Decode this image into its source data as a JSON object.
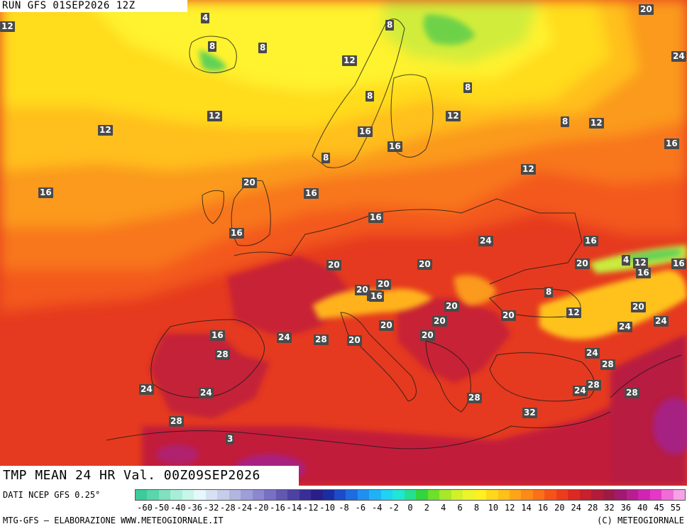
{
  "header": {
    "run_title": "RUN GFS 01SEP2026 12Z"
  },
  "map": {
    "variable_title": "TMP MEAN 24 HR Val. 00Z09SEP2026",
    "labels": [
      "20",
      "4",
      "12",
      "8",
      "8",
      "8",
      "12",
      "24",
      "8",
      "12",
      "8",
      "12",
      "12",
      "16",
      "12",
      "16",
      "8",
      "12",
      "16",
      "16",
      "20",
      "16",
      "16",
      "8",
      "4",
      "12",
      "16",
      "16",
      "24",
      "16",
      "20",
      "20",
      "20",
      "16",
      "20",
      "8",
      "20",
      "20",
      "24",
      "20",
      "12",
      "16",
      "20",
      "24",
      "24",
      "20",
      "20",
      "16",
      "24",
      "28",
      "20",
      "20",
      "24",
      "28",
      "28",
      "24",
      "24",
      "24",
      "28",
      "28",
      "28",
      "32",
      "28",
      "3"
    ],
    "colors": {
      "sea_south": "#e53a1f",
      "land_south": "#c72036",
      "warm_orange": "#f6701c",
      "orange": "#fb9a1a",
      "yellow": "#ffd71a",
      "pale_yellow": "#fff12e",
      "green_yellow": "#c8ec3c",
      "green": "#5fd256",
      "magenta": "#a4248e"
    }
  },
  "legend": {
    "source_label": "DATI NCEP GFS 0.25°",
    "scale_colors": [
      "#3ccc9c",
      "#5ad6ac",
      "#80e0c0",
      "#a8eed6",
      "#c8f6ea",
      "#e6f8fa",
      "#d6e2f4",
      "#c6cdea",
      "#b0b6e0",
      "#9e9ed8",
      "#8c88d0",
      "#7870c2",
      "#6258b2",
      "#4c42a4",
      "#3a2e96",
      "#2a1e8a",
      "#1a2ea4",
      "#1c4cc8",
      "#1e6ce0",
      "#2090f0",
      "#20b2f6",
      "#20d2f4",
      "#20e6d4",
      "#24e090",
      "#30d63c",
      "#6ee02a",
      "#a6e82a",
      "#d2f02a",
      "#eef42a",
      "#fff020",
      "#ffd81c",
      "#ffc018",
      "#ffa418",
      "#fd8a18",
      "#fb7018",
      "#f55418",
      "#ec3c1c",
      "#dc2a22",
      "#c8202c",
      "#b21c3a",
      "#9e1a44",
      "#a01a70",
      "#b81e92",
      "#d224b2",
      "#e638c8",
      "#f06cd8",
      "#f6a2e8"
    ],
    "scale_ticks": [
      "-60",
      "-50",
      "-40",
      "-36",
      "-32",
      "-28",
      "-24",
      "-20",
      "-16",
      "-14",
      "-12",
      "-10",
      "-8",
      "-6",
      "-4",
      "-2",
      "0",
      "2",
      "4",
      "6",
      "8",
      "10",
      "12",
      "14",
      "16",
      "20",
      "24",
      "28",
      "32",
      "36",
      "40",
      "45",
      "55"
    ],
    "credit_left": "MTG-GFS – ELABORAZIONE WWW.METEOGIORNALE.IT",
    "credit_right": "(C) METEOGIORNALE"
  }
}
